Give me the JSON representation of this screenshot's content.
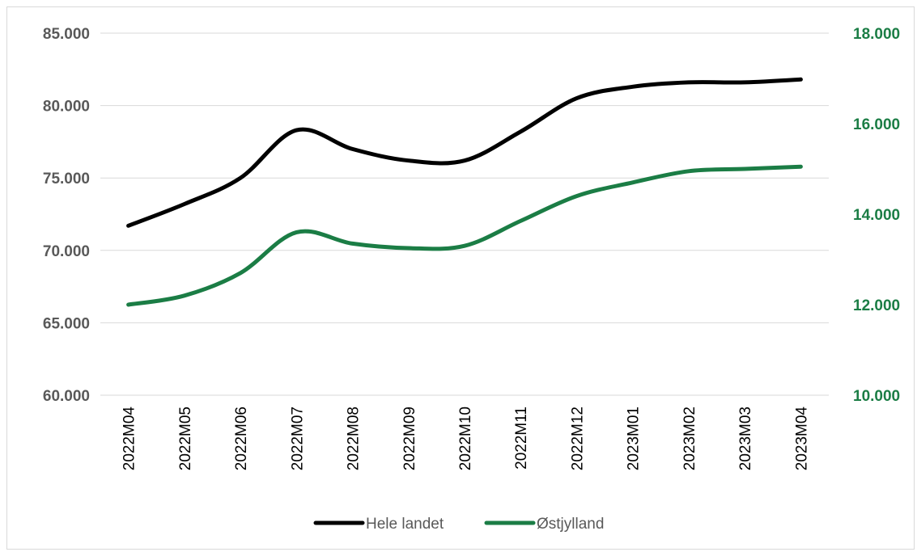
{
  "chart_data": {
    "type": "line",
    "title": "",
    "xlabel": "",
    "ylabel": "",
    "categories": [
      "2022M04",
      "2022M05",
      "2022M06",
      "2022M07",
      "2022M08",
      "2022M09",
      "2022M10",
      "2022M11",
      "2022M12",
      "2023M01",
      "2023M02",
      "2023M03",
      "2023M04"
    ],
    "y_left": {
      "lim": [
        60000,
        85000
      ],
      "ticks": [
        "60.000",
        "65.000",
        "70.000",
        "75.000",
        "80.000",
        "85.000"
      ],
      "tick_values": [
        60000,
        65000,
        70000,
        75000,
        80000,
        85000
      ],
      "color": "#595959"
    },
    "y_right": {
      "lim": [
        10000,
        18000
      ],
      "ticks": [
        "10.000",
        "12.000",
        "14.000",
        "16.000",
        "18.000"
      ],
      "tick_values": [
        10000,
        12000,
        14000,
        16000,
        18000
      ],
      "color": "#1b7d45"
    },
    "series": [
      {
        "name": "Hele landet",
        "axis": "left",
        "color": "#000000",
        "values": [
          71700,
          73200,
          75000,
          78300,
          77000,
          76200,
          76200,
          78200,
          80500,
          81300,
          81600,
          81600,
          81800
        ]
      },
      {
        "name": "Østjylland",
        "axis": "right",
        "color": "#1b7d45",
        "values": [
          12000,
          12200,
          12700,
          13600,
          13350,
          13250,
          13300,
          13850,
          14400,
          14700,
          14950,
          15000,
          15050
        ]
      }
    ],
    "grid": true,
    "legend_position": "bottom"
  }
}
